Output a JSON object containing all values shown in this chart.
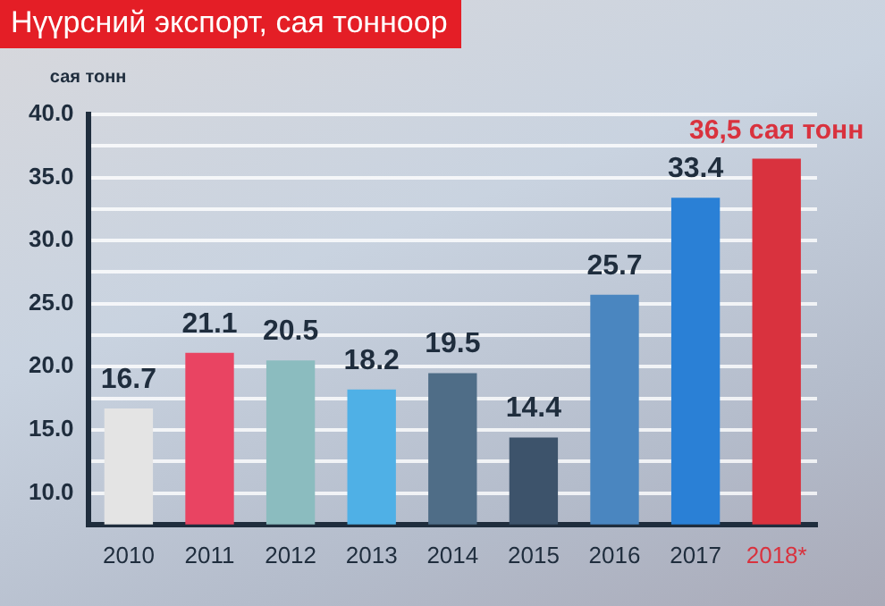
{
  "chart_data": {
    "type": "bar",
    "title": "Нүүрсний экспорт, сая тонноор",
    "ylabel": "сая тонн",
    "categories": [
      "2010",
      "2011",
      "2012",
      "2013",
      "2014",
      "2015",
      "2016",
      "2017",
      "2018*"
    ],
    "values": [
      16.7,
      21.1,
      20.5,
      18.2,
      19.5,
      14.4,
      25.7,
      33.4,
      36.5
    ],
    "value_labels": [
      "16.7",
      "21.1",
      "20.5",
      "18.2",
      "19.5",
      "14.4",
      "25.7",
      "33.4",
      "36,5 сая тонн"
    ],
    "colors": [
      "#e4e4e4",
      "#e94462",
      "#8bbcbf",
      "#4fb0e6",
      "#4f6d87",
      "#3d536b",
      "#4a86c0",
      "#2a80d6",
      "#d9323e"
    ],
    "ylim": [
      7.5,
      40
    ],
    "yticks": [
      {
        "value": 10,
        "label": "10.0"
      },
      {
        "value": 12.5,
        "label": null
      },
      {
        "value": 15,
        "label": "15.0"
      },
      {
        "value": 17.5,
        "label": null
      },
      {
        "value": 20,
        "label": "20.0"
      },
      {
        "value": 22.5,
        "label": null
      },
      {
        "value": 25,
        "label": "25.0"
      },
      {
        "value": 27.5,
        "label": null
      },
      {
        "value": 30,
        "label": "30.0"
      },
      {
        "value": 32.5,
        "label": null
      },
      {
        "value": 35,
        "label": "35.0"
      },
      {
        "value": 37.5,
        "label": null
      },
      {
        "value": 40,
        "label": "40.0"
      }
    ],
    "grid": "y",
    "legend": false
  }
}
